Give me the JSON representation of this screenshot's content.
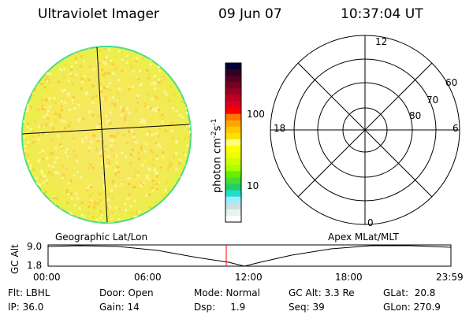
{
  "header": {
    "instrument": "Ultraviolet Imager",
    "date": "09 Jun 07",
    "time": "10:37:04 UT"
  },
  "colorbar": {
    "label": "photon cm",
    "exp1": "-2",
    "s": "s",
    "exp2": "-1",
    "ticks": [
      "100",
      "10"
    ],
    "colors": [
      "#000033",
      "#330022",
      "#550022",
      "#770022",
      "#990022",
      "#bb0022",
      "#dd0022",
      "#ff0000",
      "#ff7700",
      "#ffa500",
      "#ffc800",
      "#ffe000",
      "#ffff80",
      "#ffff00",
      "#eeff00",
      "#ccff00",
      "#aaff00",
      "#66ee00",
      "#44dd33",
      "#22cc66",
      "#22ddcc",
      "#99eeff",
      "#cce0e0",
      "#e6f3ee",
      "#ffffff"
    ]
  },
  "polar": {
    "mlt_labels": [
      "12",
      "18",
      "6",
      "0"
    ],
    "lat_labels": [
      "60",
      "70",
      "80"
    ]
  },
  "timeline": {
    "left_title": "Geographic Lat/Lon",
    "right_title": "Apex MLat/MLT",
    "ylabel": "GC Alt",
    "yticks": [
      "9.0",
      "1.8"
    ],
    "xticks": [
      "00:00",
      "06:00",
      "12:00",
      "18:00",
      "23:59"
    ],
    "marker_color": "#ff0000"
  },
  "status": {
    "flt": "Flt: LBHL",
    "ip": "IP: 36.0",
    "door": "Door: Open",
    "gain": "Gain: 14",
    "mode": "Mode: Normal",
    "dsp": "Dsp:     1.9",
    "gcalt": "GC Alt: 3.3 Re",
    "seq": "Seq: 39",
    "glat": "GLat:  20.8",
    "glon": "GLon: 270.9"
  }
}
